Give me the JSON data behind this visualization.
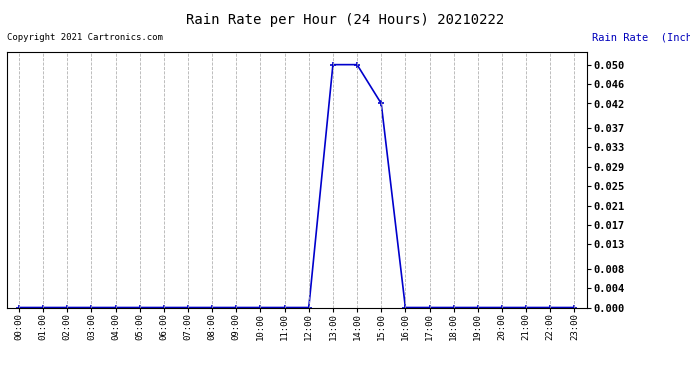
{
  "title": "Rain Rate per Hour (24 Hours) 20210222",
  "copyright_text": "Copyright 2021 Cartronics.com",
  "ylabel": "Rain Rate  (Inches/Hour)",
  "background_color": "#ffffff",
  "plot_bg_color": "#ffffff",
  "line_color": "#0000cc",
  "grid_color": "#aaaaaa",
  "title_color": "#000000",
  "ylabel_color": "#0000bb",
  "copyright_color": "#000000",
  "hours": [
    0,
    1,
    2,
    3,
    4,
    5,
    6,
    7,
    8,
    9,
    10,
    11,
    12,
    13,
    14,
    15,
    16,
    17,
    18,
    19,
    20,
    21,
    22,
    23
  ],
  "values": [
    0.0,
    0.0,
    0.0,
    0.0,
    0.0,
    0.0,
    0.0,
    0.0,
    0.0,
    0.0,
    0.0,
    0.0,
    0.0,
    0.05,
    0.05,
    0.042,
    0.0,
    0.0,
    0.0,
    0.0,
    0.0,
    0.0,
    0.0,
    0.0
  ],
  "yticks": [
    0.0,
    0.004,
    0.008,
    0.013,
    0.017,
    0.021,
    0.025,
    0.029,
    0.033,
    0.037,
    0.042,
    0.046,
    0.05
  ],
  "ylim": [
    0.0,
    0.0525
  ],
  "marker": "+",
  "marker_size": 4,
  "line_width": 1.2,
  "fig_width": 6.9,
  "fig_height": 3.75,
  "dpi": 100
}
